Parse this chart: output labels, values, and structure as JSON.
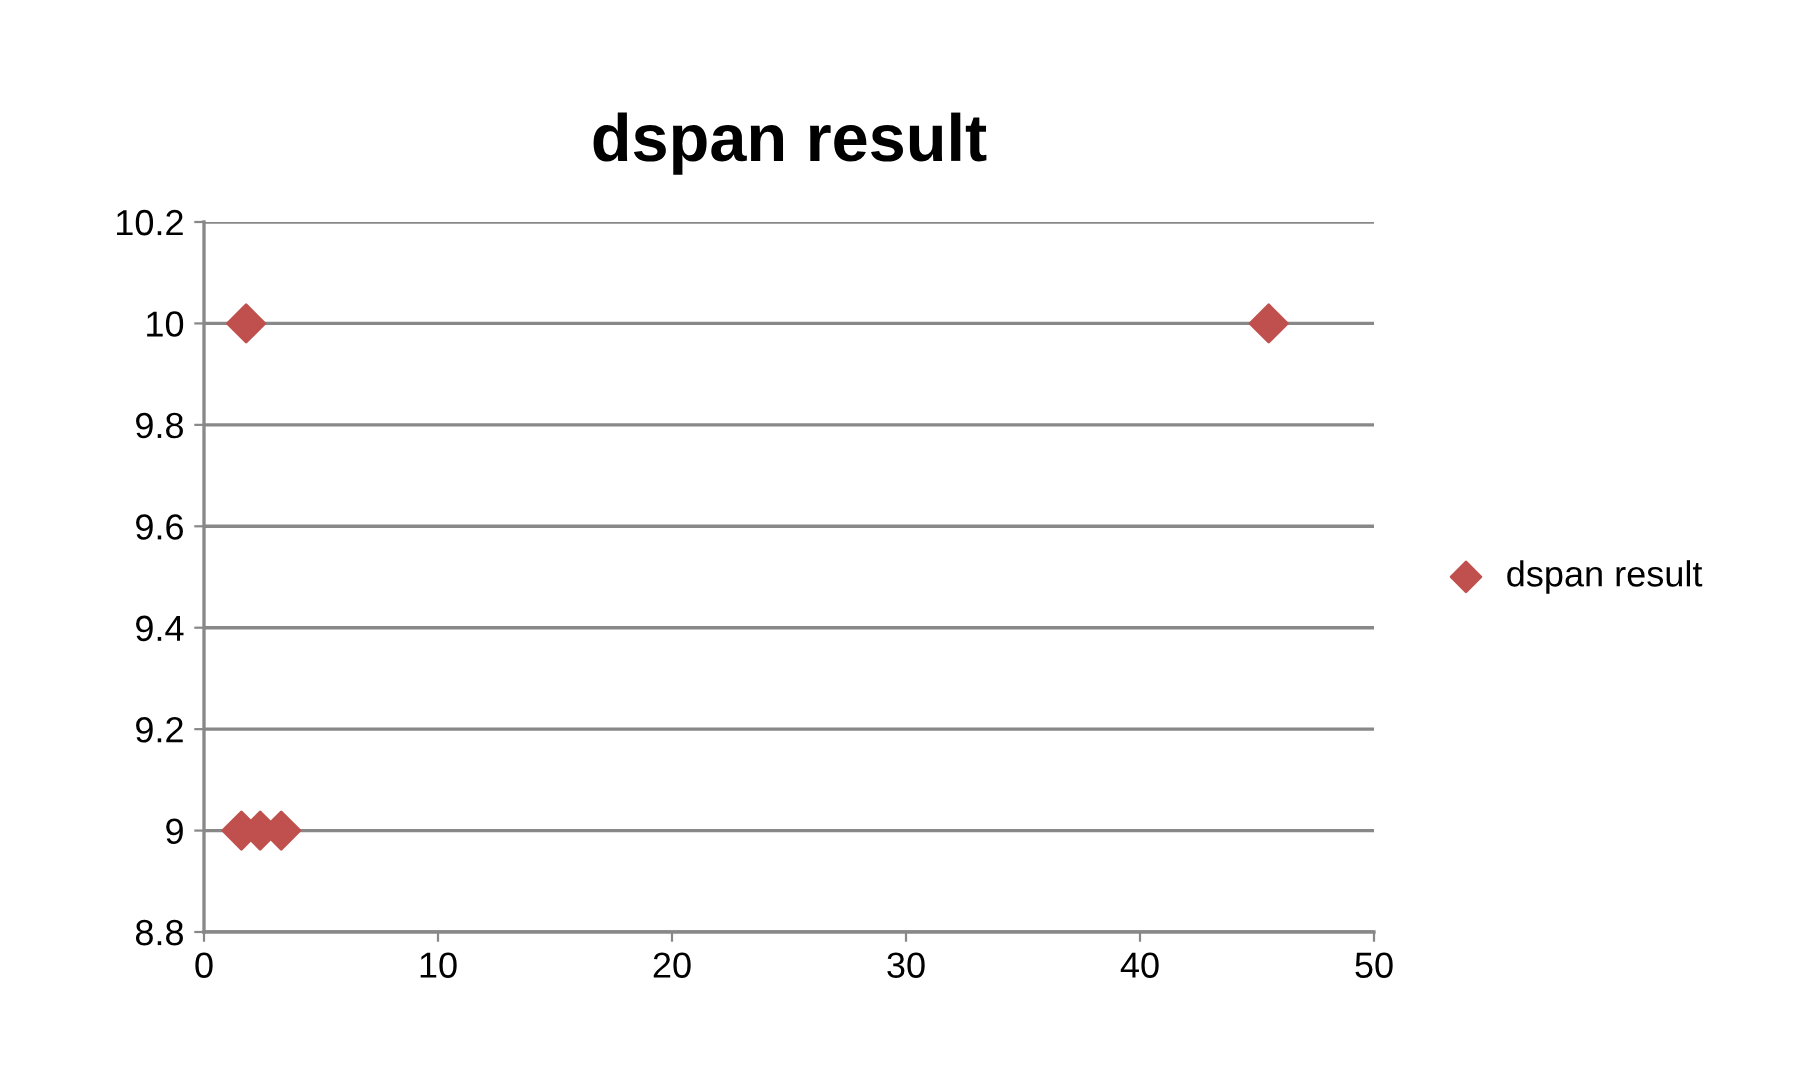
{
  "chart_data": {
    "type": "scatter",
    "title": "dspan result",
    "series": [
      {
        "name": "dspan result",
        "color": "#c0504d",
        "x": [
          1.6,
          2.4,
          3.3,
          1.8,
          45.5
        ],
        "values": [
          9,
          9,
          9,
          10,
          10
        ]
      }
    ],
    "xlim": [
      0,
      50
    ],
    "xticks": [
      0,
      10,
      20,
      30,
      40,
      50
    ],
    "ylim": [
      8.8,
      10.2
    ],
    "yticks": [
      {
        "value": 8.8,
        "label": "8.8"
      },
      {
        "value": 9,
        "label": "9"
      },
      {
        "value": 9.2,
        "label": "9.2"
      },
      {
        "value": 9.4,
        "label": "9.4"
      },
      {
        "value": 9.6,
        "label": "9.6"
      },
      {
        "value": 9.8,
        "label": "9.8"
      },
      {
        "value": 10,
        "label": "10"
      },
      {
        "value": 10.2,
        "label": "10.2"
      }
    ],
    "grid": "y",
    "legend": "right",
    "marker": "diamond"
  }
}
